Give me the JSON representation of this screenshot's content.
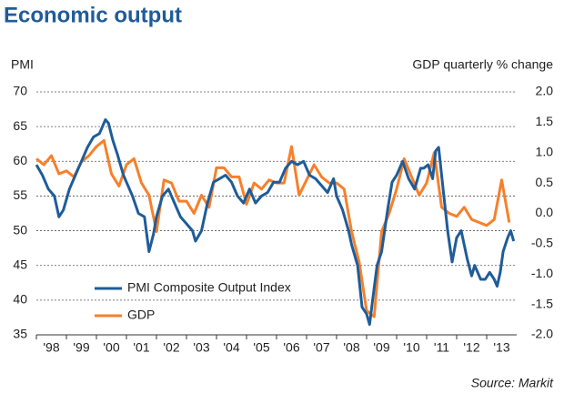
{
  "chart_data": {
    "type": "line",
    "title": "Economic output",
    "y_label": "PMI",
    "y2_label": "GDP quarterly % change",
    "source": "Source: Markit",
    "xlim": [
      1998,
      2014
    ],
    "xticks": [
      {
        "value": 1998,
        "label": "'98"
      },
      {
        "value": 1999,
        "label": "'99"
      },
      {
        "value": 2000,
        "label": "'00"
      },
      {
        "value": 2001,
        "label": "'01"
      },
      {
        "value": 2002,
        "label": "'02"
      },
      {
        "value": 2003,
        "label": "'03"
      },
      {
        "value": 2004,
        "label": "'04"
      },
      {
        "value": 2005,
        "label": "'05"
      },
      {
        "value": 2006,
        "label": "'06"
      },
      {
        "value": 2007,
        "label": "'07"
      },
      {
        "value": 2008,
        "label": "'08"
      },
      {
        "value": 2009,
        "label": "'09"
      },
      {
        "value": 2010,
        "label": "'10"
      },
      {
        "value": 2011,
        "label": "'11"
      },
      {
        "value": 2012,
        "label": "'12"
      },
      {
        "value": 2013,
        "label": "'13"
      }
    ],
    "ylim": [
      35,
      70
    ],
    "yticks": [
      35,
      40,
      45,
      50,
      55,
      60,
      65,
      70
    ],
    "y2lim": [
      -2,
      2
    ],
    "y2ticks": [
      {
        "value": -2,
        "label": "-2.0"
      },
      -1.5,
      {
        "value": -1,
        "label": "-1.0"
      },
      -0.5,
      {
        "value": 0,
        "label": "0.0"
      },
      0.5,
      {
        "value": 1,
        "label": "1.0"
      },
      1.5,
      {
        "value": 2,
        "label": "2.0"
      }
    ],
    "grid": true,
    "series": [
      {
        "name": "PMI Composite Output Index",
        "color": "#1f5c99",
        "x": [
          1998.0,
          1998.2,
          1998.4,
          1998.6,
          1998.75,
          1998.9,
          1999.1,
          1999.3,
          1999.5,
          1999.7,
          1999.9,
          2000.1,
          2000.3,
          2000.4,
          2000.55,
          2000.7,
          2000.9,
          2001.0,
          2001.2,
          2001.4,
          2001.6,
          2001.75,
          2001.9,
          2002.0,
          2002.2,
          2002.4,
          2002.6,
          2002.8,
          2003.0,
          2003.2,
          2003.3,
          2003.5,
          2003.7,
          2003.9,
          2004.1,
          2004.3,
          2004.5,
          2004.7,
          2004.9,
          2005.1,
          2005.3,
          2005.5,
          2005.7,
          2005.9,
          2006.1,
          2006.3,
          2006.5,
          2006.7,
          2006.9,
          2007.1,
          2007.3,
          2007.5,
          2007.7,
          2007.9,
          2008.0,
          2008.2,
          2008.4,
          2008.5,
          2008.7,
          2008.85,
          2009.0,
          2009.1,
          2009.2,
          2009.35,
          2009.5,
          2009.7,
          2009.85,
          2010.0,
          2010.2,
          2010.4,
          2010.6,
          2010.8,
          2010.9,
          2011.05,
          2011.2,
          2011.3,
          2011.4,
          2011.55,
          2011.7,
          2011.85,
          2012.0,
          2012.15,
          2012.35,
          2012.5,
          2012.6,
          2012.8,
          2012.95,
          2013.1,
          2013.25,
          2013.35,
          2013.45,
          2013.55,
          2013.7,
          2013.8,
          2013.9
        ],
        "values": [
          59.5,
          58,
          56,
          55,
          52,
          53,
          56,
          58,
          60,
          62,
          63.5,
          64,
          66,
          65.5,
          63,
          61,
          58,
          57,
          55,
          52.5,
          52,
          47,
          49.5,
          52,
          55,
          56,
          54,
          52,
          51,
          50,
          48.5,
          50,
          54,
          57,
          57.5,
          58,
          57,
          55,
          54,
          56,
          54,
          55,
          55.5,
          57,
          57,
          59,
          60,
          59.5,
          60,
          58,
          57.5,
          56.5,
          55.5,
          57.5,
          55,
          53,
          50,
          48,
          45,
          39,
          38,
          36.5,
          40,
          45,
          47,
          53,
          57,
          58,
          60,
          57.5,
          56,
          59,
          59,
          59.5,
          57.5,
          61.5,
          62,
          56,
          50,
          45.5,
          49,
          50,
          46,
          43.5,
          45,
          43,
          43,
          44,
          43,
          42,
          44,
          47,
          49,
          50,
          48.5
        ]
      },
      {
        "name": "GDP",
        "color": "#f7802b",
        "axis": "y2",
        "x": [
          1998.0,
          1998.25,
          1998.5,
          1998.75,
          1999.0,
          1999.25,
          1999.5,
          1999.75,
          2000.0,
          2000.25,
          2000.5,
          2000.75,
          2001.0,
          2001.25,
          2001.5,
          2001.75,
          2002.0,
          2002.25,
          2002.5,
          2002.75,
          2003.0,
          2003.25,
          2003.5,
          2003.75,
          2004.0,
          2004.25,
          2004.5,
          2004.75,
          2005.0,
          2005.25,
          2005.5,
          2005.75,
          2006.0,
          2006.25,
          2006.5,
          2006.75,
          2007.0,
          2007.25,
          2007.5,
          2007.75,
          2008.0,
          2008.25,
          2008.5,
          2008.75,
          2009.0,
          2009.25,
          2009.5,
          2009.75,
          2010.0,
          2010.25,
          2010.5,
          2010.75,
          2011.0,
          2011.25,
          2011.5,
          2011.75,
          2012.0,
          2012.25,
          2012.5,
          2012.75,
          2013.0,
          2013.25,
          2013.5,
          2013.75
        ],
        "values": [
          0.9,
          0.8,
          0.95,
          0.65,
          0.7,
          0.6,
          0.85,
          0.95,
          1.1,
          1.2,
          0.65,
          0.45,
          0.8,
          0.9,
          0.5,
          0.3,
          -0.3,
          0.55,
          0.5,
          0.2,
          0.2,
          0.0,
          0.3,
          0.1,
          0.75,
          0.75,
          0.6,
          0.6,
          0.15,
          0.5,
          0.4,
          0.55,
          0.5,
          0.5,
          1.1,
          0.3,
          0.55,
          0.8,
          0.6,
          0.5,
          0.5,
          0.4,
          -0.3,
          -0.8,
          -1.6,
          -1.7,
          -0.3,
          0.0,
          0.4,
          0.9,
          0.6,
          0.3,
          0.5,
          1.0,
          0.1,
          0.0,
          -0.05,
          0.1,
          -0.1,
          -0.15,
          -0.2,
          -0.1,
          0.55,
          -0.15
        ]
      }
    ]
  }
}
